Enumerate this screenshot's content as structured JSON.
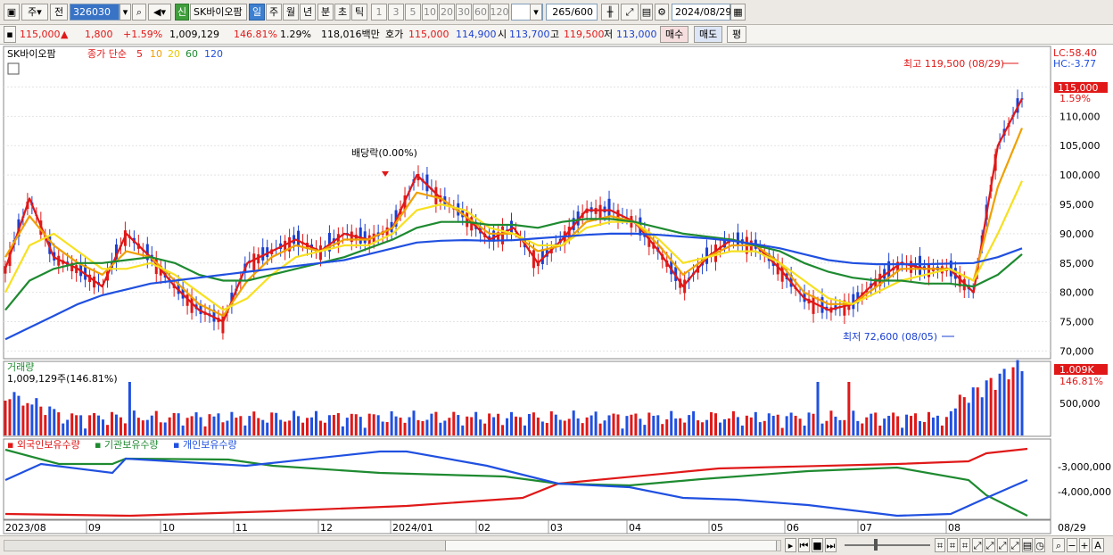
{
  "toolbar": {
    "market": "주",
    "prev": "전",
    "code": "326030",
    "stock_name": "SK바이오팜",
    "new_badge": "신",
    "periods": [
      "일",
      "주",
      "월",
      "년",
      "분",
      "초",
      "틱"
    ],
    "active_period": "일",
    "intervals": [
      "1",
      "3",
      "5",
      "10",
      "20",
      "30",
      "60",
      "120"
    ],
    "count": "265",
    "count_total": "/600",
    "date": "2024/08/29"
  },
  "quote": {
    "price": "115,000",
    "arrow": "▲",
    "change": "1,800",
    "change_pct": "+1.59%",
    "volume": "1,009,129",
    "volume_ratio": "146.81%",
    "turnover": "1.29%",
    "amount": "118,016백만",
    "ask_label": "호가",
    "ask": "115,000",
    "bid": "114,900",
    "open_label": "시",
    "open": "113,700",
    "high_label": "고",
    "high": "119,500",
    "low_label": "저",
    "low": "113,000",
    "buy_label": "매수",
    "sell_label": "매도",
    "eval_label": "평"
  },
  "legend": {
    "name": "SK바이오팜",
    "ma_label": "종가 단순",
    "ma_periods": [
      "5",
      "10",
      "20",
      "60",
      "120"
    ],
    "ma_colors": [
      "#e01818",
      "#f0a000",
      "#f7e020",
      "#1e8a30",
      "#2050e0"
    ]
  },
  "annotations": {
    "lc": "LC:58.40",
    "hc": "HC:-3.77",
    "high_note": "최고 119,500 (08/29)",
    "low_note": "최저 72,600 (08/05)",
    "dividend": "배당락(0.00%)",
    "last_price": "115,000",
    "last_pct": "1.59%"
  },
  "volume_panel": {
    "title": "거래량",
    "value": "1,009,129주(146.81%)",
    "last_box": "1.009K",
    "last_pct": "146.81%",
    "axis": [
      "500,000"
    ]
  },
  "holding_panel": {
    "labels": [
      "외국인보유수량",
      "기관보유수량",
      "개인보유수량"
    ],
    "colors": [
      "#e01818",
      "#1e8a30",
      "#2050e0"
    ],
    "axis": [
      "-3,000,000",
      "-4,000,000"
    ]
  },
  "x_axis": {
    "labels": [
      "2023/08",
      "09",
      "10",
      "11",
      "12",
      "2024/01",
      "02",
      "03",
      "04",
      "05",
      "06",
      "07",
      "08"
    ],
    "last": "08/29"
  },
  "chart_data": {
    "type": "line",
    "title": "",
    "xlabel": "",
    "ylabel": "",
    "y_ticks": [
      115000,
      110000,
      105000,
      100000,
      95000,
      90000,
      85000,
      80000,
      75000,
      70000
    ],
    "ylim": [
      69000,
      121000
    ],
    "series": [
      {
        "name": "5",
        "color": "#e01818",
        "values": [
          84000,
          96000,
          86000,
          84000,
          81000,
          90000,
          86000,
          81000,
          77000,
          75000,
          85000,
          87000,
          89000,
          87000,
          90000,
          89000,
          91000,
          100000,
          96000,
          93000,
          89000,
          91000,
          85000,
          89000,
          94000,
          94000,
          92000,
          87000,
          81000,
          86000,
          89000,
          88000,
          84000,
          79000,
          77000,
          78000,
          82000,
          85000,
          84000,
          84000,
          80000,
          105000,
          113000
        ]
      },
      {
        "name": "10",
        "color": "#f0a000",
        "values": [
          86000,
          93000,
          88000,
          85000,
          83000,
          87000,
          86000,
          82000,
          78000,
          76000,
          82000,
          86000,
          88000,
          87000,
          89000,
          89000,
          91000,
          97000,
          96000,
          93000,
          90000,
          90000,
          87000,
          88000,
          92000,
          93000,
          92000,
          88000,
          83000,
          86000,
          88000,
          88000,
          85000,
          80000,
          78000,
          78000,
          81000,
          84000,
          84000,
          84000,
          82000,
          98000,
          108000
        ]
      },
      {
        "name": "20",
        "color": "#f7e020",
        "values": [
          80000,
          88000,
          90000,
          87000,
          84000,
          84000,
          85000,
          83000,
          80000,
          77000,
          79000,
          83000,
          86000,
          87000,
          88000,
          88000,
          90000,
          94000,
          95000,
          94000,
          91000,
          90000,
          88000,
          88000,
          91000,
          92000,
          92000,
          89000,
          85000,
          86000,
          87000,
          87000,
          85000,
          82000,
          79000,
          78000,
          80000,
          82000,
          83000,
          84000,
          82000,
          90000,
          99000
        ]
      },
      {
        "name": "60",
        "color": "#1e8a30",
        "values": [
          77000,
          82000,
          84000,
          85000,
          85000,
          85500,
          86000,
          85000,
          83000,
          82000,
          82000,
          83000,
          84000,
          85000,
          86000,
          87500,
          89000,
          91000,
          92000,
          92000,
          91500,
          91500,
          91000,
          92000,
          92500,
          92500,
          92000,
          91000,
          90000,
          89500,
          89000,
          88000,
          87000,
          85000,
          83500,
          82500,
          82000,
          82000,
          81500,
          81500,
          81000,
          83000,
          86500
        ]
      },
      {
        "name": "120",
        "color": "#2050e0",
        "values": [
          72000,
          74000,
          76000,
          78000,
          79500,
          80500,
          81500,
          82000,
          82500,
          83000,
          83500,
          84000,
          84500,
          85000,
          85500,
          86500,
          87500,
          88500,
          88800,
          88900,
          88800,
          88900,
          89200,
          89500,
          89800,
          90000,
          90000,
          89800,
          89500,
          89200,
          88800,
          88200,
          87500,
          86500,
          85500,
          85000,
          84800,
          84800,
          84800,
          84900,
          85000,
          86000,
          87500
        ]
      }
    ]
  }
}
